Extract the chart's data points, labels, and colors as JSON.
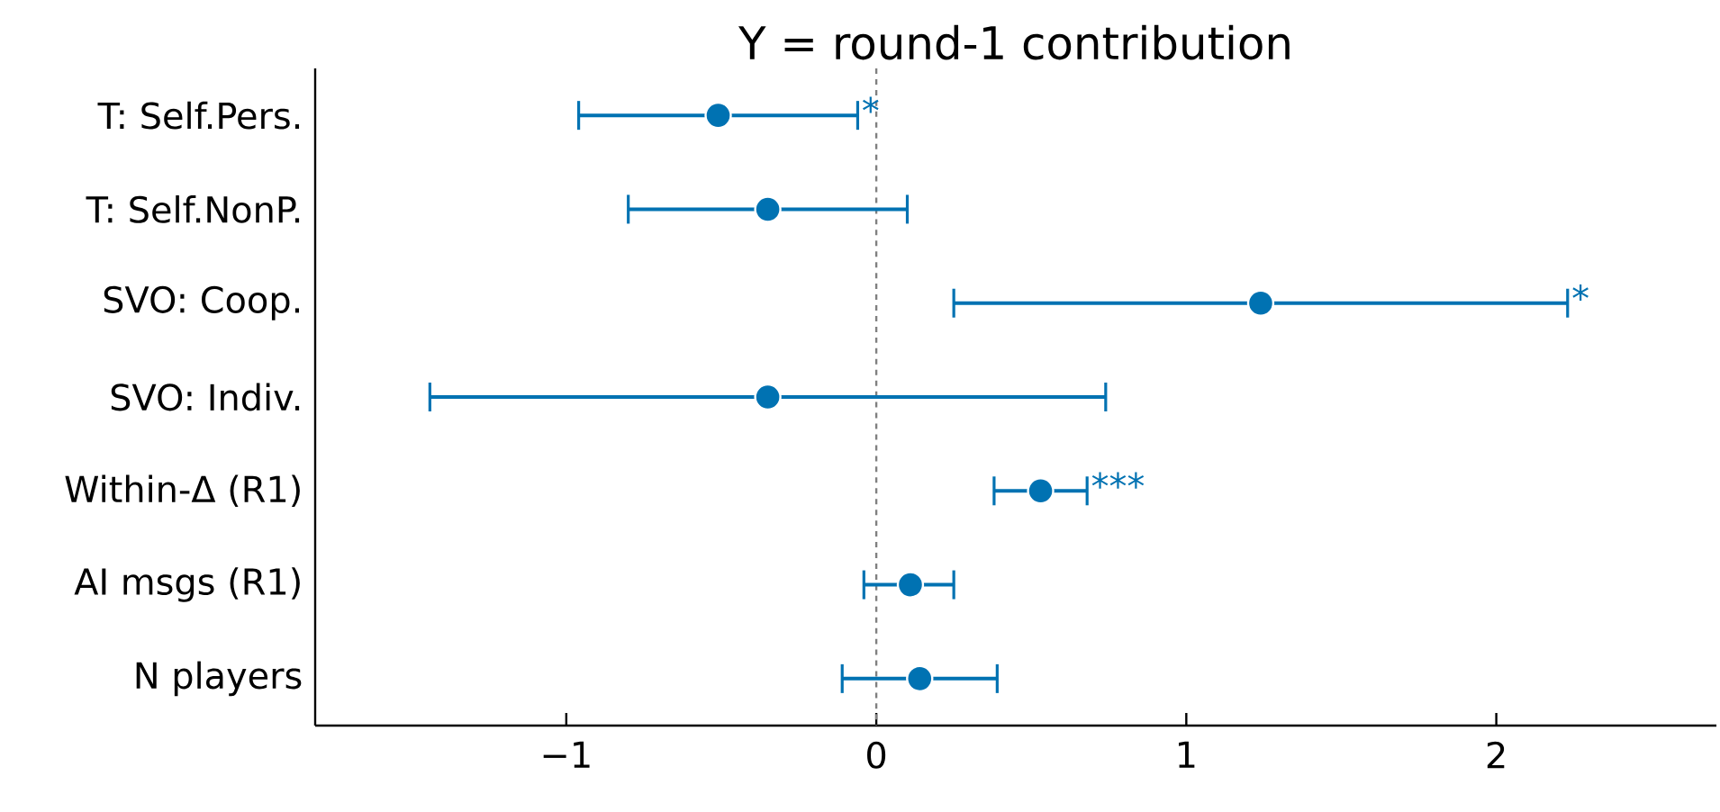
{
  "chart_data": {
    "type": "scatter",
    "title": "Y = round-1 contribution",
    "orientation": "horizontal",
    "categories": [
      "T: Self.Pers.",
      "T: Self.NonP.",
      "SVO: Coop.",
      "SVO: Indiv.",
      "Within-Δ (R1)",
      "AI msgs (R1)",
      "N players"
    ],
    "values": [
      -0.51,
      -0.35,
      1.24,
      -0.35,
      0.53,
      0.11,
      0.14
    ],
    "errors": [
      [
        -0.96,
        -0.06
      ],
      [
        -0.8,
        0.1
      ],
      [
        0.25,
        2.23
      ],
      [
        -1.44,
        0.74
      ],
      [
        0.38,
        0.68
      ],
      [
        -0.04,
        0.25
      ],
      [
        -0.11,
        0.39
      ]
    ],
    "color": "#0072b2",
    "marker": "circle",
    "xlim": [
      -1.81,
      2.71
    ],
    "xticks": [
      {
        "value": -1,
        "label": "−1"
      },
      0,
      1,
      2
    ],
    "ref_lines": [
      {
        "axis": "x",
        "value": 0,
        "color": "#808080",
        "line_style": "dashed"
      }
    ],
    "annotations": [
      {
        "text": "*",
        "x": -0.06,
        "y": "T: Self.Pers."
      },
      {
        "text": "*",
        "x": 2.23,
        "y": "SVO: Coop."
      },
      {
        "text": "***",
        "x": 0.68,
        "y": "Within-Δ (R1)"
      }
    ],
    "grid": false
  }
}
